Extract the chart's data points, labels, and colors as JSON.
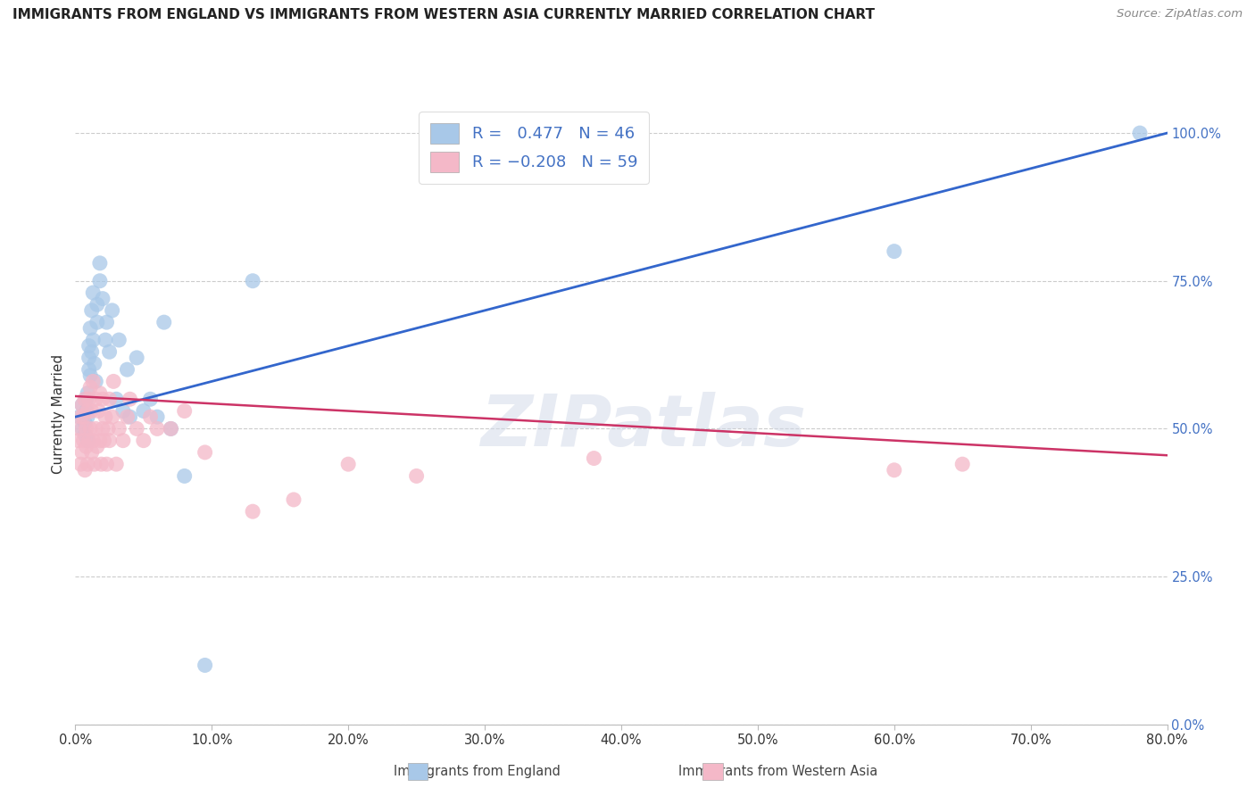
{
  "title": "IMMIGRANTS FROM ENGLAND VS IMMIGRANTS FROM WESTERN ASIA CURRENTLY MARRIED CORRELATION CHART",
  "source": "Source: ZipAtlas.com",
  "ylabel": "Currently Married",
  "xlim": [
    0.0,
    0.8
  ],
  "ylim": [
    0.0,
    1.05
  ],
  "legend_label1": "Immigrants from England",
  "legend_label2": "Immigrants from Western Asia",
  "R1": 0.477,
  "N1": 46,
  "R2": -0.208,
  "N2": 59,
  "color_england": "#a8c8e8",
  "color_western_asia": "#f4b8c8",
  "trendline_color_england": "#3366cc",
  "trendline_color_western_asia": "#cc3366",
  "background_color": "#ffffff",
  "watermark": "ZIPatlas",
  "grid_color": "#cccccc",
  "right_axis_color": "#4472c4",
  "title_color": "#222222",
  "source_color": "#888888",
  "england_x": [
    0.003,
    0.005,
    0.005,
    0.007,
    0.007,
    0.008,
    0.008,
    0.009,
    0.009,
    0.009,
    0.01,
    0.01,
    0.01,
    0.011,
    0.011,
    0.012,
    0.012,
    0.013,
    0.013,
    0.014,
    0.015,
    0.016,
    0.016,
    0.018,
    0.018,
    0.02,
    0.022,
    0.023,
    0.025,
    0.027,
    0.03,
    0.032,
    0.035,
    0.038,
    0.04,
    0.045,
    0.05,
    0.055,
    0.06,
    0.065,
    0.07,
    0.08,
    0.095,
    0.13,
    0.6,
    0.78
  ],
  "england_y": [
    0.52,
    0.5,
    0.54,
    0.49,
    0.51,
    0.53,
    0.55,
    0.48,
    0.52,
    0.56,
    0.6,
    0.62,
    0.64,
    0.59,
    0.67,
    0.63,
    0.7,
    0.73,
    0.65,
    0.61,
    0.58,
    0.68,
    0.71,
    0.75,
    0.78,
    0.72,
    0.65,
    0.68,
    0.63,
    0.7,
    0.55,
    0.65,
    0.53,
    0.6,
    0.52,
    0.62,
    0.53,
    0.55,
    0.52,
    0.68,
    0.5,
    0.42,
    0.1,
    0.75,
    0.8,
    1.0
  ],
  "western_asia_x": [
    0.002,
    0.003,
    0.004,
    0.004,
    0.005,
    0.005,
    0.006,
    0.006,
    0.007,
    0.007,
    0.008,
    0.008,
    0.009,
    0.009,
    0.01,
    0.01,
    0.011,
    0.011,
    0.012,
    0.012,
    0.013,
    0.013,
    0.014,
    0.015,
    0.015,
    0.016,
    0.017,
    0.018,
    0.018,
    0.019,
    0.02,
    0.02,
    0.021,
    0.022,
    0.023,
    0.024,
    0.025,
    0.025,
    0.027,
    0.028,
    0.03,
    0.032,
    0.035,
    0.038,
    0.04,
    0.045,
    0.05,
    0.055,
    0.06,
    0.07,
    0.08,
    0.095,
    0.13,
    0.16,
    0.2,
    0.25,
    0.38,
    0.6,
    0.65
  ],
  "western_asia_y": [
    0.48,
    0.5,
    0.44,
    0.52,
    0.46,
    0.54,
    0.48,
    0.52,
    0.43,
    0.55,
    0.47,
    0.5,
    0.44,
    0.53,
    0.48,
    0.55,
    0.5,
    0.57,
    0.46,
    0.53,
    0.48,
    0.58,
    0.44,
    0.5,
    0.55,
    0.47,
    0.53,
    0.48,
    0.56,
    0.44,
    0.5,
    0.55,
    0.48,
    0.52,
    0.44,
    0.5,
    0.55,
    0.48,
    0.52,
    0.58,
    0.44,
    0.5,
    0.48,
    0.52,
    0.55,
    0.5,
    0.48,
    0.52,
    0.5,
    0.5,
    0.53,
    0.46,
    0.36,
    0.38,
    0.44,
    0.42,
    0.45,
    0.43,
    0.44
  ],
  "trendline_england_x0": 0.0,
  "trendline_england_y0": 0.52,
  "trendline_england_x1": 0.8,
  "trendline_england_y1": 1.0,
  "trendline_western_x0": 0.0,
  "trendline_western_y0": 0.555,
  "trendline_western_x1": 0.8,
  "trendline_western_y1": 0.455
}
